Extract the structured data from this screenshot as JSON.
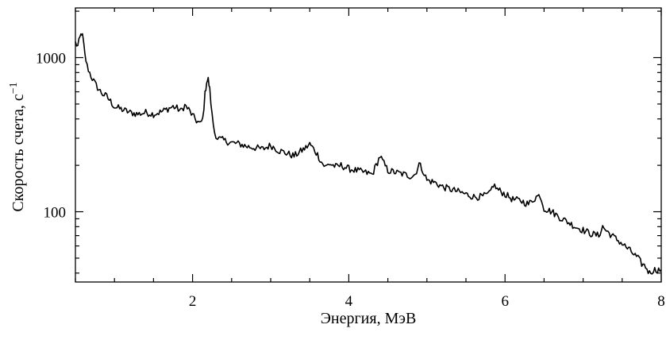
{
  "chart_data": {
    "type": "line",
    "title": "",
    "xlabel": "Энергия, МэВ",
    "ylabel": "Скорость счета, с",
    "ylabel_superscript": "−1",
    "xlim": [
      0.5,
      8.0
    ],
    "ylim": [
      35,
      2100
    ],
    "yscale": "log",
    "grid": false,
    "legend": "none",
    "x_ticks": [
      2,
      4,
      6,
      8
    ],
    "x_tick_labels": [
      "2",
      "4",
      "6",
      "8"
    ],
    "y_ticks": [
      100,
      1000
    ],
    "y_tick_labels": [
      "100",
      "1000"
    ],
    "x_minor_step": 0.5,
    "series": [
      {
        "color": "#000000",
        "x": [
          0.5,
          0.53,
          0.56,
          0.58,
          0.6,
          0.62,
          0.65,
          0.7,
          0.75,
          0.8,
          0.85,
          0.9,
          0.95,
          1.0,
          1.1,
          1.2,
          1.3,
          1.4,
          1.5,
          1.6,
          1.7,
          1.75,
          1.8,
          1.85,
          1.9,
          1.95,
          2.0,
          2.05,
          2.1,
          2.13,
          2.16,
          2.18,
          2.2,
          2.22,
          2.25,
          2.28,
          2.32,
          2.4,
          2.5,
          2.6,
          2.7,
          2.8,
          2.9,
          3.0,
          3.1,
          3.2,
          3.3,
          3.4,
          3.45,
          3.5,
          3.55,
          3.6,
          3.65,
          3.7,
          3.75,
          3.8,
          3.85,
          3.9,
          4.0,
          4.1,
          4.2,
          4.3,
          4.35,
          4.4,
          4.45,
          4.5,
          4.6,
          4.7,
          4.8,
          4.85,
          4.9,
          4.95,
          5.0,
          5.1,
          5.2,
          5.3,
          5.4,
          5.5,
          5.6,
          5.7,
          5.8,
          5.85,
          5.9,
          6.0,
          6.1,
          6.2,
          6.3,
          6.4,
          6.45,
          6.5,
          6.6,
          6.7,
          6.8,
          6.9,
          7.0,
          7.1,
          7.2,
          7.25,
          7.3,
          7.4,
          7.5,
          7.6,
          7.7,
          7.75,
          7.8,
          7.85,
          7.9,
          8.0
        ],
        "y": [
          1250,
          1180,
          1350,
          1450,
          1300,
          1050,
          880,
          760,
          680,
          620,
          580,
          560,
          520,
          480,
          460,
          440,
          430,
          440,
          430,
          445,
          470,
          480,
          470,
          450,
          490,
          460,
          420,
          390,
          370,
          400,
          580,
          700,
          720,
          620,
          420,
          330,
          300,
          290,
          280,
          275,
          265,
          260,
          255,
          270,
          250,
          240,
          230,
          250,
          260,
          275,
          255,
          235,
          210,
          195,
          205,
          200,
          195,
          200,
          190,
          185,
          180,
          175,
          200,
          230,
          205,
          185,
          180,
          175,
          170,
          175,
          205,
          185,
          160,
          155,
          145,
          140,
          135,
          130,
          125,
          125,
          130,
          150,
          140,
          130,
          120,
          118,
          112,
          125,
          128,
          105,
          100,
          92,
          86,
          80,
          76,
          72,
          70,
          80,
          75,
          68,
          62,
          56,
          50,
          46,
          44,
          40,
          42,
          42
        ]
      }
    ]
  }
}
